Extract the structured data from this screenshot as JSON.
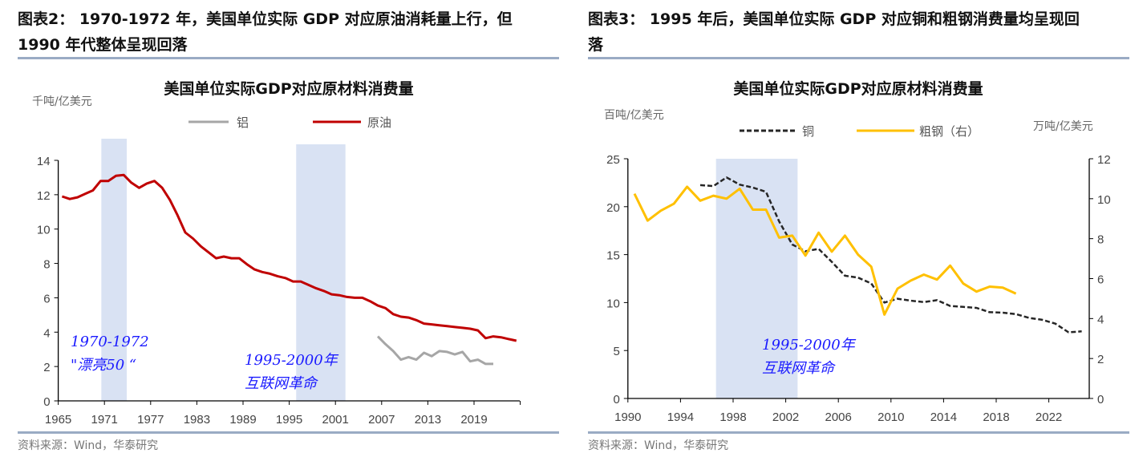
{
  "left_panel": {
    "heading_line1": "图表2：  1970-1972 年，美国单位实际 GDP 对应原油消耗量上行，但",
    "heading_line2": "1990 年代整体呈现回落",
    "source": "资料来源：Wind，华泰研究"
  },
  "right_panel": {
    "heading_line1": "图表3：  1995 年后，美国单位实际 GDP 对应铜和粗钢消费量均呈现回",
    "heading_line2": "落",
    "source": "资料来源：Wind，华泰研究"
  },
  "chart_data": [
    {
      "type": "line",
      "title": "美国单位实际GDP对应原材料消费量",
      "ylabel": "千吨/亿美元",
      "xlim": [
        1965,
        2025
      ],
      "ylim": [
        0,
        14
      ],
      "xticks": [
        1965,
        1971,
        1977,
        1983,
        1989,
        1995,
        2001,
        2007,
        2013,
        2019
      ],
      "yticks": [
        0,
        2,
        4,
        6,
        8,
        10,
        12,
        14
      ],
      "legend_position": "top",
      "grid": false,
      "shaded_periods": [
        [
          1970.6,
          1973.9
        ],
        [
          1995.9,
          2002.3
        ]
      ],
      "annotations": [
        {
          "lines": [
            "1970-1972",
            "\"漂亮50 “"
          ]
        },
        {
          "lines": [
            "1995-2000年",
            "互联网革命"
          ]
        }
      ],
      "series": [
        {
          "name": "铝",
          "color": "#a6a6a6",
          "style": "solid",
          "x": [
            2006,
            2007,
            2008,
            2009,
            2010,
            2011,
            2012,
            2013,
            2014,
            2015,
            2016,
            2017,
            2018,
            2019,
            2020,
            2021
          ],
          "values": [
            3.75,
            3.3,
            2.9,
            2.4,
            2.55,
            2.4,
            2.8,
            2.6,
            2.9,
            2.85,
            2.7,
            2.85,
            2.3,
            2.4,
            2.15,
            2.15
          ]
        },
        {
          "name": "原油",
          "color": "#c00000",
          "style": "solid",
          "x": [
            1965,
            1966,
            1967,
            1968,
            1969,
            1970,
            1971,
            1972,
            1973,
            1974,
            1975,
            1976,
            1977,
            1978,
            1979,
            1980,
            1981,
            1982,
            1983,
            1984,
            1985,
            1986,
            1987,
            1988,
            1989,
            1990,
            1991,
            1992,
            1993,
            1994,
            1995,
            1996,
            1997,
            1998,
            1999,
            2000,
            2001,
            2002,
            2003,
            2004,
            2005,
            2006,
            2007,
            2008,
            2009,
            2010,
            2011,
            2012,
            2013,
            2014,
            2015,
            2016,
            2017,
            2018,
            2019,
            2020,
            2021,
            2022,
            2023,
            2024
          ],
          "values": [
            11.9,
            11.75,
            11.85,
            12.05,
            12.25,
            12.8,
            12.8,
            13.1,
            13.15,
            12.7,
            12.4,
            12.65,
            12.8,
            12.4,
            11.7,
            10.8,
            9.8,
            9.45,
            9.0,
            8.65,
            8.3,
            8.4,
            8.3,
            8.3,
            7.95,
            7.65,
            7.5,
            7.4,
            7.25,
            7.15,
            6.95,
            6.95,
            6.75,
            6.55,
            6.4,
            6.2,
            6.15,
            6.05,
            6.0,
            6.0,
            5.8,
            5.55,
            5.4,
            5.05,
            4.9,
            4.85,
            4.7,
            4.5,
            4.45,
            4.4,
            4.35,
            4.3,
            4.25,
            4.2,
            4.1,
            3.65,
            3.75,
            3.7,
            3.6,
            3.5
          ]
        }
      ]
    },
    {
      "type": "line",
      "title": "美国单位实际GDP对应原材料消费量",
      "ylabel": "百吨/亿美元",
      "ylabel_right": "万吨/亿美元",
      "xlim": [
        1990,
        2025
      ],
      "ylim": [
        0,
        25
      ],
      "ylim_right": [
        0,
        12
      ],
      "xticks": [
        1990,
        1994,
        1998,
        2002,
        2006,
        2010,
        2014,
        2018,
        2022
      ],
      "yticks": [
        0,
        5,
        10,
        15,
        20,
        25
      ],
      "yticks_right": [
        0,
        2,
        4,
        6,
        8,
        10,
        12
      ],
      "legend_position": "top",
      "grid": false,
      "shaded_periods": [
        [
          1996.7,
          2002.9
        ]
      ],
      "annotations": [
        {
          "lines": [
            "1995-2000年",
            "互联网革命"
          ]
        }
      ],
      "series": [
        {
          "name": "铜",
          "color": "#262626",
          "style": "dashed",
          "axis": "left",
          "x": [
            1995,
            1996,
            1997,
            1998,
            1999,
            2000,
            2001,
            2002,
            2003,
            2004,
            2005,
            2006,
            2007,
            2008,
            2009,
            2010,
            2011,
            2012,
            2013,
            2014,
            2015,
            2016,
            2017,
            2018,
            2019,
            2020,
            2021,
            2022,
            2023,
            2024
          ],
          "values": [
            22.25,
            22.15,
            23.05,
            22.3,
            22.0,
            21.55,
            18.45,
            16.05,
            15.35,
            15.6,
            14.25,
            12.8,
            12.6,
            12.0,
            10.0,
            10.4,
            10.2,
            10.05,
            10.25,
            9.65,
            9.55,
            9.45,
            9.0,
            8.95,
            8.8,
            8.4,
            8.2,
            7.8,
            6.9,
            7.0
          ]
        },
        {
          "name": "粗钢（右）",
          "color": "#ffc000",
          "style": "solid",
          "axis": "right",
          "x": [
            1990,
            1991,
            1992,
            1993,
            1994,
            1995,
            1996,
            1997,
            1998,
            1999,
            2000,
            2001,
            2002,
            2003,
            2004,
            2005,
            2006,
            2007,
            2008,
            2009,
            2010,
            2011,
            2012,
            2013,
            2014,
            2015,
            2016,
            2017,
            2018,
            2019
          ],
          "values": [
            10.25,
            8.9,
            9.4,
            9.75,
            10.6,
            9.9,
            10.15,
            10.0,
            10.5,
            9.45,
            9.45,
            8.05,
            8.15,
            7.15,
            8.3,
            7.35,
            8.15,
            7.2,
            6.6,
            4.2,
            5.5,
            5.9,
            6.2,
            5.95,
            6.65,
            5.75,
            5.35,
            5.6,
            5.55,
            5.25
          ]
        }
      ]
    }
  ]
}
